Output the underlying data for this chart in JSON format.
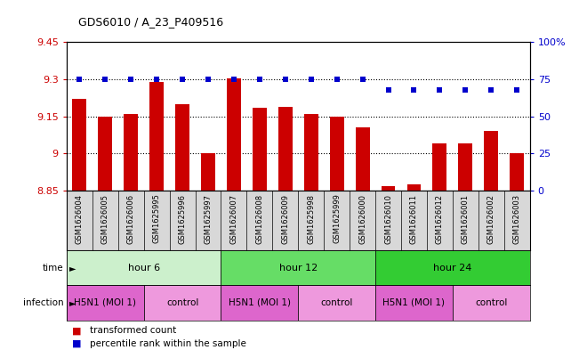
{
  "title": "GDS6010 / A_23_P409516",
  "samples": [
    "GSM1626004",
    "GSM1626005",
    "GSM1626006",
    "GSM1625995",
    "GSM1625996",
    "GSM1625997",
    "GSM1626007",
    "GSM1626008",
    "GSM1626009",
    "GSM1625998",
    "GSM1625999",
    "GSM1626000",
    "GSM1626010",
    "GSM1626011",
    "GSM1626012",
    "GSM1626001",
    "GSM1626002",
    "GSM1626003"
  ],
  "bar_values": [
    9.22,
    9.15,
    9.16,
    9.29,
    9.2,
    9.0,
    9.305,
    9.185,
    9.19,
    9.16,
    9.15,
    9.105,
    8.87,
    8.875,
    9.04,
    9.04,
    9.09,
    9.0
  ],
  "percentile_values": [
    75,
    75,
    75,
    75,
    75,
    75,
    75,
    75,
    75,
    75,
    75,
    75,
    68,
    68,
    68,
    68,
    68,
    68
  ],
  "bar_color": "#cc0000",
  "dot_color": "#0000cc",
  "ylim_left": [
    8.85,
    9.45
  ],
  "ylim_right": [
    0,
    100
  ],
  "yticks_left": [
    8.85,
    9.0,
    9.15,
    9.3,
    9.45
  ],
  "yticks_right": [
    0,
    25,
    50,
    75,
    100
  ],
  "ytick_labels_left": [
    "8.85",
    "9",
    "9.15",
    "9.3",
    "9.45"
  ],
  "ytick_labels_right": [
    "0",
    "25",
    "50",
    "75",
    "100%"
  ],
  "dotted_lines": [
    9.0,
    9.15,
    9.3
  ],
  "time_groups": [
    {
      "label": "hour 6",
      "start": 0,
      "end": 6,
      "color": "#ccf0cc"
    },
    {
      "label": "hour 12",
      "start": 6,
      "end": 12,
      "color": "#66dd66"
    },
    {
      "label": "hour 24",
      "start": 12,
      "end": 18,
      "color": "#33cc33"
    }
  ],
  "infection_groups": [
    {
      "label": "H5N1 (MOI 1)",
      "start": 0,
      "end": 3,
      "color": "#dd66cc"
    },
    {
      "label": "control",
      "start": 3,
      "end": 6,
      "color": "#ee99dd"
    },
    {
      "label": "H5N1 (MOI 1)",
      "start": 6,
      "end": 9,
      "color": "#dd66cc"
    },
    {
      "label": "control",
      "start": 9,
      "end": 12,
      "color": "#ee99dd"
    },
    {
      "label": "H5N1 (MOI 1)",
      "start": 12,
      "end": 15,
      "color": "#dd66cc"
    },
    {
      "label": "control",
      "start": 15,
      "end": 18,
      "color": "#ee99dd"
    }
  ],
  "legend_items": [
    {
      "label": "transformed count",
      "color": "#cc0000"
    },
    {
      "label": "percentile rank within the sample",
      "color": "#0000cc"
    }
  ],
  "bar_width": 0.55,
  "background_color": "#ffffff"
}
